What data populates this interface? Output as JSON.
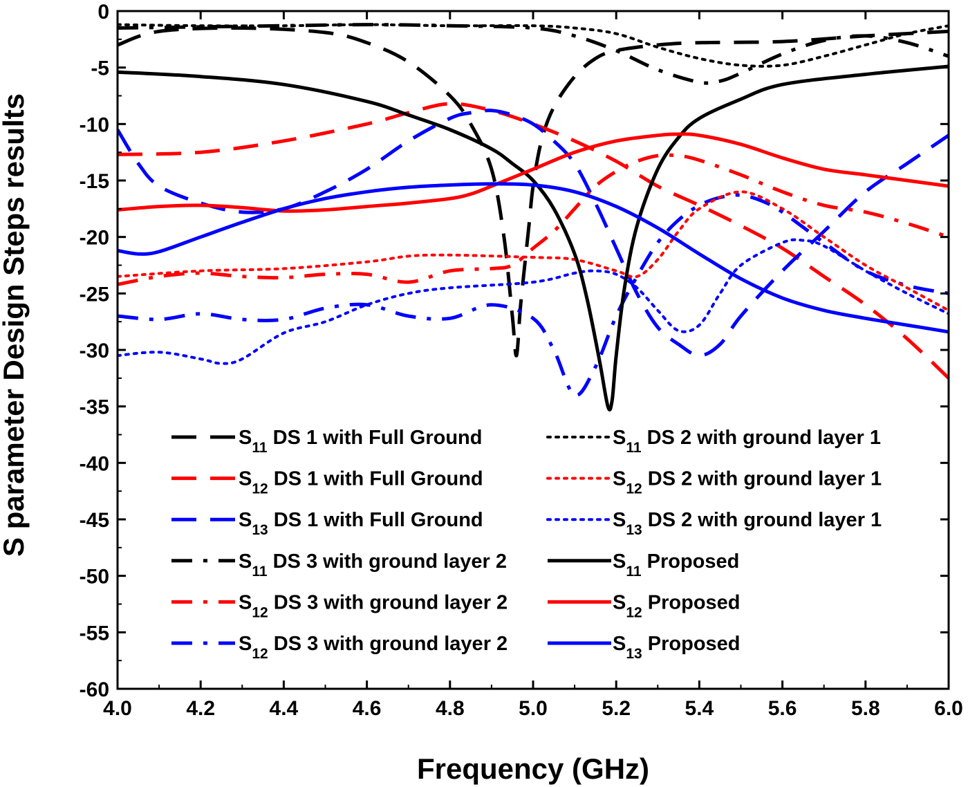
{
  "chart_data": {
    "type": "line",
    "title": "",
    "xlabel": "Frequency (GHz)",
    "ylabel": "S parameter Design Steps results",
    "xlim": [
      4.0,
      6.0
    ],
    "ylim": [
      -60,
      0
    ],
    "xticks": [
      "4.0",
      "4.2",
      "4.4",
      "4.6",
      "4.8",
      "5.0",
      "5.2",
      "5.4",
      "5.6",
      "5.8",
      "6.0"
    ],
    "yticks": [
      "0",
      "-5",
      "-10",
      "-15",
      "-20",
      "-25",
      "-30",
      "-35",
      "-40",
      "-45",
      "-50",
      "-55",
      "-60"
    ],
    "grid": false,
    "legend_position": "bottom-center",
    "series": [
      {
        "name": "S11 DS 1 with Full Ground",
        "sym": "S",
        "sub": "11",
        "rest": "DS 1 with Full Ground",
        "color": "#000000",
        "style": "dash",
        "x": [
          4.0,
          4.1,
          4.3,
          4.5,
          4.6,
          4.7,
          4.8,
          4.85,
          4.9,
          4.93,
          4.95,
          4.96,
          4.97,
          4.99,
          5.0,
          5.02,
          5.05,
          5.1,
          5.15,
          5.2,
          5.3,
          5.4,
          5.6,
          5.8,
          6.0
        ],
        "y": [
          -3.0,
          -1.8,
          -1.5,
          -1.9,
          -2.8,
          -4.5,
          -7.5,
          -10.0,
          -14.0,
          -20.0,
          -27.0,
          -30.5,
          -26.0,
          -19.0,
          -15.5,
          -11.5,
          -8.5,
          -5.8,
          -4.2,
          -3.5,
          -3.0,
          -2.8,
          -2.7,
          -2.2,
          -1.8
        ]
      },
      {
        "name": "S12 DS 1 with Full Ground",
        "sym": "S",
        "sub": "12",
        "rest": "DS 1 with Full Ground",
        "color": "#ff0000",
        "style": "dash",
        "x": [
          4.0,
          4.2,
          4.4,
          4.6,
          4.7,
          4.8,
          4.9,
          5.0,
          5.1,
          5.2,
          5.3,
          5.4,
          5.5,
          5.6,
          5.7,
          5.8,
          5.9,
          6.0
        ],
        "y": [
          -12.7,
          -12.5,
          -11.5,
          -10.0,
          -9.0,
          -8.2,
          -8.8,
          -10.0,
          -11.5,
          -13.3,
          -15.5,
          -17.2,
          -19.0,
          -21.0,
          -23.5,
          -26.0,
          -29.0,
          -32.5
        ]
      },
      {
        "name": "S13 DS 1 with Full Ground",
        "sym": "S",
        "sub": "13",
        "rest": "DS 1 with Full Ground",
        "color": "#0000ff",
        "style": "dash",
        "x": [
          4.0,
          4.05,
          4.1,
          4.2,
          4.3,
          4.4,
          4.5,
          4.6,
          4.7,
          4.8,
          4.85,
          4.9,
          4.95,
          5.0,
          5.05,
          5.1,
          5.15,
          5.2,
          5.25,
          5.3,
          5.35,
          5.4,
          5.45,
          5.5,
          5.6,
          5.7,
          5.8,
          5.9,
          6.0
        ],
        "y": [
          -10.5,
          -13.5,
          -15.5,
          -17.0,
          -17.8,
          -17.5,
          -16.0,
          -14.0,
          -11.5,
          -9.5,
          -9.0,
          -8.8,
          -9.2,
          -10.0,
          -11.5,
          -13.5,
          -17.0,
          -21.0,
          -25.0,
          -28.0,
          -29.5,
          -30.5,
          -29.5,
          -27.0,
          -23.0,
          -19.5,
          -16.0,
          -13.5,
          -11.0
        ]
      },
      {
        "name": "S11 DS 3 with ground layer 2",
        "sym": "S",
        "sub": "11",
        "rest": "DS 3 with ground layer 2",
        "color": "#000000",
        "style": "dashdot",
        "x": [
          4.0,
          4.2,
          4.4,
          4.6,
          4.8,
          5.0,
          5.1,
          5.2,
          5.3,
          5.4,
          5.45,
          5.5,
          5.6,
          5.7,
          5.8,
          5.9,
          6.0
        ],
        "y": [
          -1.5,
          -1.4,
          -1.3,
          -1.2,
          -1.3,
          -1.5,
          -2.2,
          -3.5,
          -5.2,
          -6.3,
          -6.2,
          -5.5,
          -3.8,
          -2.6,
          -2.2,
          -2.8,
          -4.0
        ]
      },
      {
        "name": "S12 DS 3 with ground layer 2",
        "sym": "S",
        "sub": "12",
        "rest": "DS 3 with ground layer 2",
        "color": "#ff0000",
        "style": "dashdot",
        "x": [
          4.0,
          4.1,
          4.2,
          4.3,
          4.4,
          4.5,
          4.6,
          4.7,
          4.8,
          4.9,
          4.95,
          5.0,
          5.05,
          5.1,
          5.15,
          5.2,
          5.25,
          5.3,
          5.35,
          5.4,
          5.5,
          5.6,
          5.7,
          5.8,
          5.9,
          6.0
        ],
        "y": [
          -24.2,
          -23.5,
          -23.2,
          -23.5,
          -23.6,
          -23.3,
          -23.3,
          -24.0,
          -23.0,
          -22.8,
          -22.5,
          -21.0,
          -19.5,
          -17.5,
          -15.5,
          -14.2,
          -13.3,
          -12.8,
          -12.8,
          -13.2,
          -14.5,
          -16.0,
          -17.2,
          -17.8,
          -18.8,
          -20.0
        ]
      },
      {
        "name": "S12 DS 3 with ground layer 2",
        "sym": "S",
        "sub": "12",
        "rest": "DS 3 with ground layer 2",
        "color": "#0000ff",
        "style": "dashdot",
        "x": [
          4.0,
          4.1,
          4.2,
          4.3,
          4.4,
          4.5,
          4.6,
          4.7,
          4.8,
          4.9,
          5.0,
          5.05,
          5.1,
          5.15,
          5.2,
          5.25,
          5.3,
          5.35,
          5.4,
          5.45,
          5.5,
          5.55,
          5.6,
          5.7,
          5.8,
          5.9,
          6.0
        ],
        "y": [
          -27.0,
          -27.3,
          -26.8,
          -27.3,
          -27.3,
          -26.3,
          -26.0,
          -27.0,
          -27.2,
          -26.0,
          -27.2,
          -30.0,
          -34.0,
          -31.5,
          -27.0,
          -23.5,
          -20.5,
          -18.5,
          -17.2,
          -16.5,
          -16.3,
          -16.8,
          -17.8,
          -20.5,
          -23.0,
          -24.3,
          -25.0
        ]
      },
      {
        "name": "S11 DS 2 with ground layer 1",
        "sym": "S",
        "sub": "11",
        "rest": "DS 2 with ground layer 1",
        "color": "#000000",
        "style": "dot",
        "x": [
          4.0,
          4.2,
          4.4,
          4.6,
          4.8,
          5.0,
          5.1,
          5.2,
          5.3,
          5.4,
          5.5,
          5.6,
          5.7,
          5.8,
          5.9,
          6.0
        ],
        "y": [
          -1.2,
          -1.3,
          -1.3,
          -1.2,
          -1.3,
          -1.3,
          -1.5,
          -2.0,
          -3.2,
          -4.2,
          -4.8,
          -4.8,
          -4.0,
          -3.0,
          -2.0,
          -1.3
        ]
      },
      {
        "name": "S12 DS 2 with ground layer 1",
        "sym": "S",
        "sub": "12",
        "rest": "DS 2 with ground layer 1",
        "color": "#ff0000",
        "style": "dot",
        "x": [
          4.0,
          4.2,
          4.4,
          4.6,
          4.7,
          4.8,
          5.0,
          5.1,
          5.2,
          5.25,
          5.3,
          5.35,
          5.4,
          5.5,
          5.6,
          5.7,
          5.8,
          5.9,
          6.0
        ],
        "y": [
          -23.5,
          -23.0,
          -22.8,
          -22.2,
          -21.7,
          -21.6,
          -21.8,
          -22.0,
          -23.0,
          -23.5,
          -22.0,
          -19.5,
          -17.5,
          -16.0,
          -17.5,
          -20.0,
          -22.5,
          -24.5,
          -26.5
        ]
      },
      {
        "name": "S13 DS 2 with ground layer 1",
        "sym": "S",
        "sub": "13",
        "rest": "DS 2 with ground layer 1",
        "color": "#0000ff",
        "style": "dot",
        "x": [
          4.0,
          4.1,
          4.2,
          4.25,
          4.3,
          4.4,
          4.5,
          4.6,
          4.7,
          4.8,
          5.0,
          5.1,
          5.15,
          5.2,
          5.25,
          5.3,
          5.35,
          5.4,
          5.45,
          5.5,
          5.6,
          5.65,
          5.7,
          5.8,
          5.9,
          6.0
        ],
        "y": [
          -30.5,
          -30.2,
          -30.8,
          -31.2,
          -30.8,
          -28.5,
          -27.5,
          -26.0,
          -25.0,
          -24.5,
          -24.0,
          -23.2,
          -23.0,
          -23.3,
          -24.5,
          -26.5,
          -28.3,
          -27.8,
          -25.0,
          -22.5,
          -20.5,
          -20.3,
          -20.8,
          -23.0,
          -25.0,
          -26.8
        ]
      },
      {
        "name": "S11 Proposed",
        "sym": "S",
        "sub": "11",
        "rest": "Proposed",
        "color": "#000000",
        "style": "solid",
        "x": [
          4.0,
          4.2,
          4.4,
          4.6,
          4.7,
          4.8,
          4.9,
          4.95,
          5.0,
          5.05,
          5.1,
          5.13,
          5.16,
          5.18,
          5.19,
          5.2,
          5.22,
          5.25,
          5.3,
          5.35,
          5.4,
          5.5,
          5.6,
          5.8,
          6.0
        ],
        "y": [
          -5.4,
          -5.8,
          -6.5,
          -8.0,
          -9.2,
          -10.5,
          -12.2,
          -13.5,
          -15.0,
          -17.5,
          -21.5,
          -25.5,
          -31.0,
          -35.0,
          -34.5,
          -30.5,
          -24.5,
          -19.0,
          -14.0,
          -11.2,
          -9.5,
          -7.8,
          -6.5,
          -5.6,
          -4.9
        ]
      },
      {
        "name": "S12 Proposed",
        "sym": "S",
        "sub": "12",
        "rest": "Proposed",
        "color": "#ff0000",
        "style": "solid",
        "x": [
          4.0,
          4.1,
          4.2,
          4.3,
          4.4,
          4.5,
          4.6,
          4.7,
          4.8,
          4.85,
          4.9,
          5.0,
          5.1,
          5.2,
          5.3,
          5.35,
          5.4,
          5.5,
          5.6,
          5.7,
          5.8,
          5.9,
          6.0
        ],
        "y": [
          -17.6,
          -17.3,
          -17.2,
          -17.4,
          -17.7,
          -17.6,
          -17.3,
          -17.0,
          -16.6,
          -16.2,
          -15.5,
          -14.0,
          -12.5,
          -11.5,
          -11.0,
          -10.9,
          -11.0,
          -11.8,
          -13.0,
          -14.0,
          -14.5,
          -15.0,
          -15.5
        ]
      },
      {
        "name": "S13 Proposed",
        "sym": "S",
        "sub": "13",
        "rest": "Proposed",
        "color": "#0000ff",
        "style": "solid",
        "x": [
          4.0,
          4.05,
          4.1,
          4.2,
          4.3,
          4.4,
          4.5,
          4.6,
          4.7,
          4.8,
          4.9,
          5.0,
          5.1,
          5.2,
          5.3,
          5.4,
          5.5,
          5.6,
          5.7,
          5.8,
          5.9,
          6.0
        ],
        "y": [
          -21.2,
          -21.5,
          -21.3,
          -20.0,
          -18.7,
          -17.5,
          -16.6,
          -16.0,
          -15.6,
          -15.4,
          -15.3,
          -15.4,
          -16.0,
          -17.3,
          -19.2,
          -21.5,
          -23.7,
          -25.4,
          -26.5,
          -27.2,
          -27.8,
          -28.4
        ]
      }
    ]
  }
}
